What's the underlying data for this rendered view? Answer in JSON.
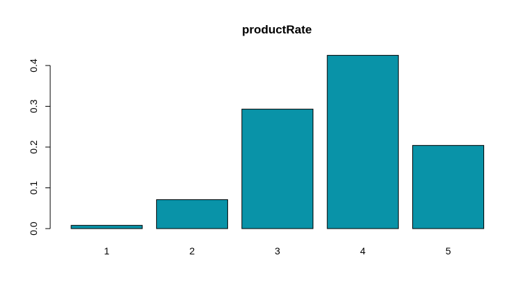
{
  "chart_data": {
    "type": "bar",
    "title": "productRate",
    "xlabel": "",
    "ylabel": "",
    "categories": [
      "1",
      "2",
      "3",
      "4",
      "5"
    ],
    "values": [
      0.008,
      0.071,
      0.293,
      0.425,
      0.204
    ],
    "ylim": [
      0,
      0.4
    ],
    "yticks": [
      0.0,
      0.1,
      0.2,
      0.3,
      0.4
    ],
    "ytick_labels": [
      "0.0",
      "0.1",
      "0.2",
      "0.3",
      "0.4"
    ],
    "grid": false,
    "legend": "none",
    "bar_color": "#0993a8",
    "bar_border_color": "#000000"
  }
}
